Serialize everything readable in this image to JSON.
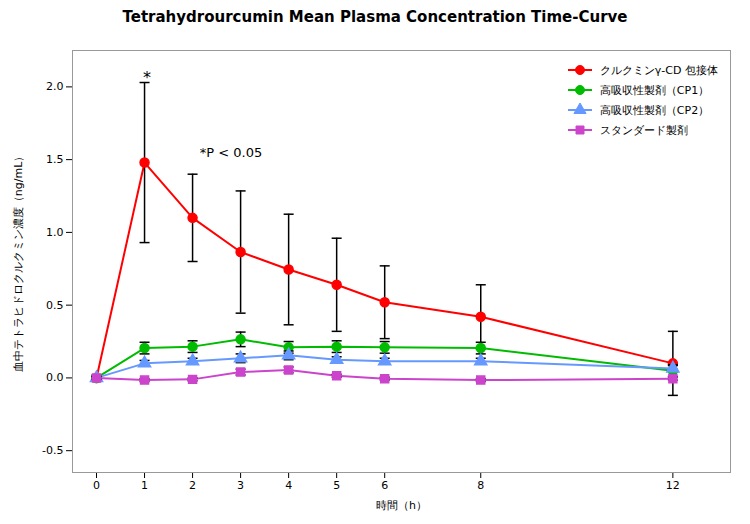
{
  "chart_data": {
    "type": "line",
    "title": "Tetrahydrourcumin Mean Plasma Concentration Time-Curve",
    "xlabel": "時間（h）",
    "ylabel": "血中テトラヒドロクルクミン濃度（ng/mL）",
    "x": [
      0,
      1,
      2,
      3,
      4,
      5,
      6,
      8,
      12
    ],
    "xlim": [
      -0.5,
      13.2
    ],
    "ylim": [
      -0.65,
      2.25
    ],
    "xticks": [
      0,
      1,
      2,
      3,
      4,
      5,
      6,
      8,
      12
    ],
    "yticks": [
      -0.5,
      {
        "value": 0,
        "label": "0.0"
      },
      0.5,
      {
        "value": 1,
        "label": "1.0"
      },
      1.5,
      {
        "value": 2,
        "label": "2.0"
      }
    ],
    "grid": false,
    "legend": "upper right",
    "series": [
      {
        "name": "クルクミンγ-CD 包接体",
        "color": "#ff0000",
        "marker": "circle",
        "values": [
          0.0,
          1.48,
          1.1,
          0.865,
          0.745,
          0.64,
          0.52,
          0.42,
          0.1
        ],
        "yerr": [
          0.02,
          0.55,
          0.3,
          0.42,
          0.38,
          0.32,
          0.25,
          0.22,
          0.22
        ]
      },
      {
        "name": "高吸収性製剤（CP1）",
        "color": "#00bb00",
        "marker": "circle",
        "values": [
          0.0,
          0.205,
          0.215,
          0.265,
          0.21,
          0.215,
          0.21,
          0.205,
          0.05
        ],
        "yerr": [
          0.01,
          0.04,
          0.04,
          0.05,
          0.04,
          0.04,
          0.04,
          0.04,
          0.04
        ]
      },
      {
        "name": "高吸収性製剤（CP2）",
        "color": "#6699ff",
        "marker": "triangle",
        "values": [
          0.0,
          0.1,
          0.115,
          0.135,
          0.155,
          0.125,
          0.115,
          0.115,
          0.065
        ],
        "yerr": [
          0.01,
          0.02,
          0.02,
          0.03,
          0.03,
          0.02,
          0.02,
          0.02,
          0.02
        ]
      },
      {
        "name": "スタンダード製剤",
        "color": "#cc44cc",
        "marker": "square",
        "values": [
          0.0,
          -0.015,
          -0.01,
          0.04,
          0.055,
          0.015,
          -0.005,
          -0.015,
          -0.005
        ],
        "yerr": [
          0.01,
          0.01,
          0.01,
          0.02,
          0.02,
          0.01,
          0.01,
          0.01,
          0.01
        ]
      }
    ],
    "annotations": [
      {
        "text": "*",
        "x": 1.05,
        "y": 2.03
      },
      {
        "text": "*P < 0.05",
        "x": 2.15,
        "y": 1.58
      }
    ]
  }
}
